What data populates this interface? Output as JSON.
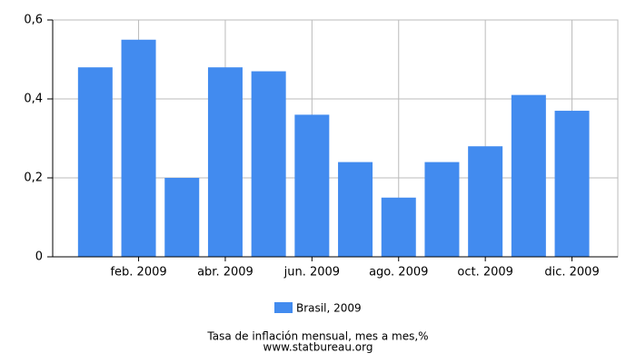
{
  "chart_data": {
    "type": "bar",
    "title": "Tasa de inflación mensual, mes a mes,%",
    "source": "www.statbureau.org",
    "categories": [
      null,
      "feb. 2009",
      null,
      "abr. 2009",
      null,
      "jun. 2009",
      null,
      "ago. 2009",
      null,
      "oct. 2009",
      null,
      "dic. 2009"
    ],
    "series": [
      {
        "name": "Brasil, 2009",
        "color": "#428bef",
        "values": [
          0.48,
          0.55,
          0.2,
          0.48,
          0.47,
          0.36,
          0.24,
          0.15,
          0.24,
          0.28,
          0.41,
          0.37
        ]
      }
    ],
    "ylim": [
      0,
      0.6
    ],
    "yticks": [
      0,
      {
        "value": 0.2,
        "label": "0,2"
      },
      {
        "value": 0.4,
        "label": "0,4"
      },
      {
        "value": 0.6,
        "label": "0,6"
      }
    ],
    "grid": true
  }
}
